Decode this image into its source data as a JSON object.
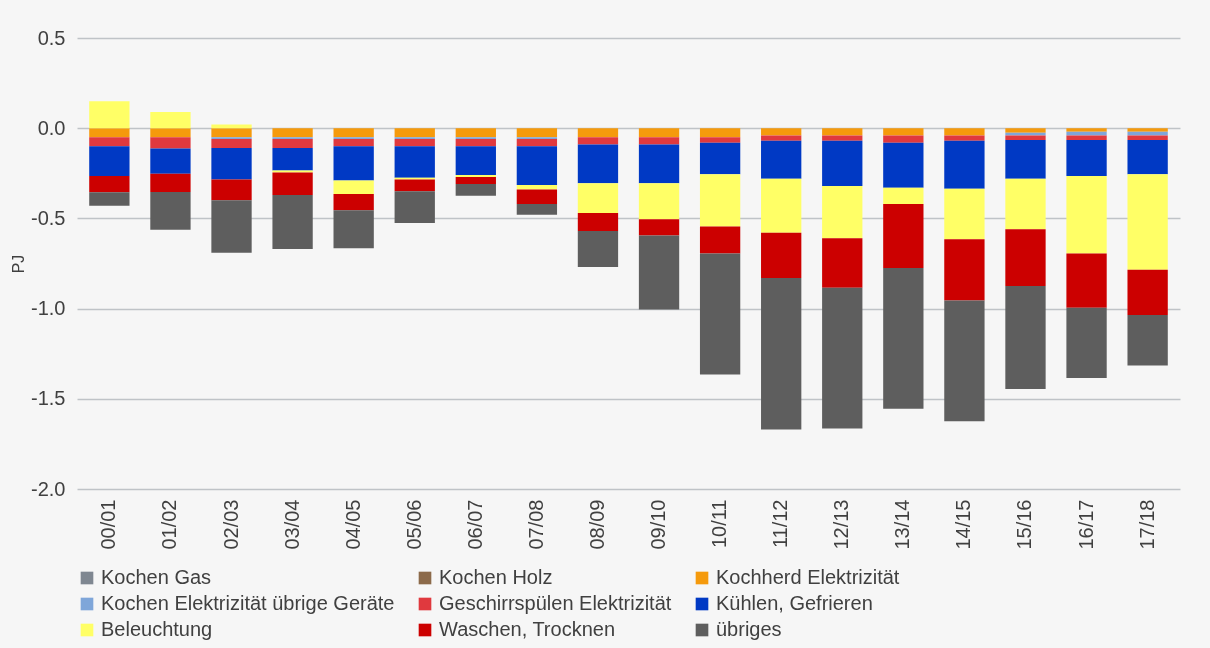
{
  "chart_data": {
    "type": "bar",
    "stacked": true,
    "ylabel": "PJ",
    "grid": "y",
    "legend": "bottom",
    "categories": [
      "00/01",
      "01/02",
      "02/03",
      "03/04",
      "04/05",
      "05/06",
      "06/07",
      "07/08",
      "08/09",
      "09/10",
      "10/11",
      "11/12",
      "12/13",
      "13/14",
      "14/15",
      "15/16",
      "16/17",
      "17/18"
    ],
    "ylim": [
      -2.0,
      0.5
    ],
    "yticks": [
      {
        "value": -2,
        "label": "-2.0"
      },
      {
        "value": -1.5,
        "label": "-1.5"
      },
      {
        "value": -1,
        "label": "-1.0"
      },
      {
        "value": -0.5,
        "label": "-0.5"
      },
      {
        "value": 0,
        "label": "0.0"
      },
      {
        "value": 0.5,
        "label": "0.5"
      }
    ],
    "series": [
      {
        "name": "Kochen Gas",
        "color": "#7f8791",
        "values": [
          0,
          0,
          0,
          0,
          0,
          0,
          0,
          0,
          0,
          0,
          0,
          0,
          0,
          0,
          0,
          0,
          0,
          0
        ]
      },
      {
        "name": "Kochen Holz",
        "color": "#8c6a4a",
        "values": [
          0,
          0,
          0,
          0,
          0,
          0,
          0,
          0,
          0,
          0,
          0,
          0,
          0,
          0,
          0,
          0,
          0,
          0
        ]
      },
      {
        "name": "Kochherd Elektrizität",
        "color": "#f59a0c",
        "values": [
          -0.05,
          -0.05,
          -0.05,
          -0.05,
          -0.05,
          -0.05,
          -0.05,
          -0.05,
          -0.05,
          -0.05,
          -0.05,
          -0.04,
          -0.04,
          -0.04,
          -0.04,
          -0.025,
          -0.02,
          -0.02
        ]
      },
      {
        "name": "Kochen Elektrizität übrige Geräte",
        "color": "#7fa6d9",
        "values": [
          0,
          0,
          -0.01,
          -0.01,
          -0.01,
          -0.01,
          -0.01,
          -0.01,
          0,
          0,
          0,
          0,
          0,
          0,
          0,
          -0.015,
          -0.02,
          -0.02
        ]
      },
      {
        "name": "Geschirrspülen Elektrizität",
        "color": "#e0393e",
        "values": [
          -0.05,
          -0.063,
          -0.05,
          -0.05,
          -0.04,
          -0.04,
          -0.04,
          -0.04,
          -0.04,
          -0.04,
          -0.03,
          -0.03,
          -0.03,
          -0.04,
          -0.03,
          -0.025,
          -0.025,
          -0.025
        ]
      },
      {
        "name": "Kühlen, Gefrieren",
        "color": "#0039c4",
        "values": [
          -0.165,
          -0.14,
          -0.175,
          -0.125,
          -0.19,
          -0.175,
          -0.16,
          -0.215,
          -0.215,
          -0.215,
          -0.175,
          -0.21,
          -0.25,
          -0.25,
          -0.265,
          -0.215,
          -0.2,
          -0.19
        ]
      },
      {
        "name": "Beleuchtung",
        "color": "#ffff66",
        "values": [
          0.15,
          0.09,
          0.02,
          -0.01,
          -0.075,
          -0.01,
          -0.01,
          -0.025,
          -0.165,
          -0.2,
          -0.29,
          -0.3,
          -0.29,
          -0.09,
          -0.28,
          -0.28,
          -0.43,
          -0.53
        ]
      },
      {
        "name": "Waschen, Trocknen",
        "color": "#cc0000",
        "values": [
          -0.09,
          -0.1,
          -0.115,
          -0.125,
          -0.09,
          -0.065,
          -0.04,
          -0.08,
          -0.1,
          -0.09,
          -0.15,
          -0.25,
          -0.275,
          -0.355,
          -0.34,
          -0.315,
          -0.3,
          -0.25
        ]
      },
      {
        "name": "übriges",
        "color": "#5e5e5e",
        "values": [
          -0.075,
          -0.21,
          -0.29,
          -0.3,
          -0.21,
          -0.175,
          -0.065,
          -0.06,
          -0.2,
          -0.41,
          -0.67,
          -0.84,
          -0.78,
          -0.78,
          -0.67,
          -0.57,
          -0.39,
          -0.28
        ]
      }
    ]
  }
}
